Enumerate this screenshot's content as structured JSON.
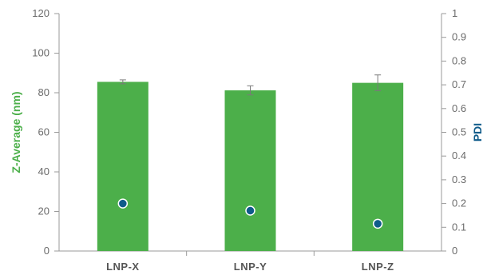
{
  "chart_data": {
    "type": "bar",
    "categories": [
      "LNP-X",
      "LNP-Y",
      "LNP-Z"
    ],
    "series": [
      {
        "name": "Z-Average (nm)",
        "kind": "bar",
        "axis": "left",
        "values": [
          85.5,
          81.2,
          85.0
        ],
        "error": [
          1.0,
          2.3,
          4.0
        ],
        "color": "#4caf4a"
      },
      {
        "name": "PDI",
        "kind": "scatter",
        "axis": "right",
        "values": [
          0.2,
          0.17,
          0.115
        ],
        "color": "#0f5b8a"
      }
    ],
    "ylabel": "Z-Average (nm)",
    "y2label": "PDI",
    "ylim": [
      0,
      120
    ],
    "y2lim": [
      0,
      1
    ],
    "yticks": [
      "0",
      "20",
      "40",
      "60",
      "80",
      "100",
      "120"
    ],
    "y2ticks": [
      "0",
      "0.1",
      "0.2",
      "0.3",
      "0.4",
      "0.5",
      "0.6",
      "0.7",
      "0.8",
      "0.9",
      "1"
    ],
    "ylabel_color": "#4caf4a",
    "y2label_color": "#0f5b8a",
    "grid": false,
    "legend": "none"
  }
}
